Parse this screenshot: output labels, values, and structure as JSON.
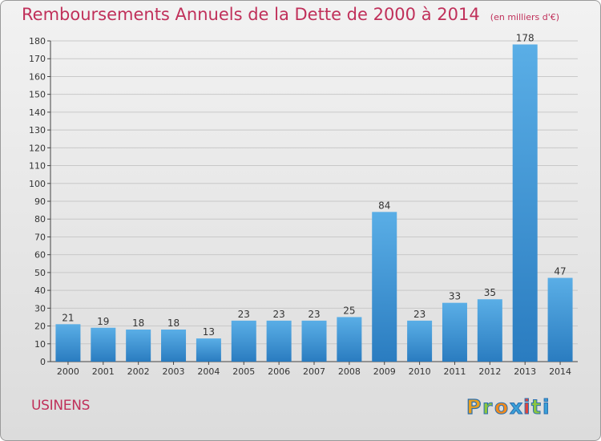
{
  "title": "Remboursements Annuels de la Dette de 2000 à 2014",
  "unit": "(en milliers d'€)",
  "commune": "USINENS",
  "logo_text": "Proxiti",
  "colors": {
    "title": "#c0305a",
    "bar_light": "#5aaee6",
    "bar_dark": "#2a7cc0",
    "grid": "#c8c8c8",
    "axis": "#444444"
  },
  "chart_data": {
    "type": "bar",
    "categories": [
      "2000",
      "2001",
      "2002",
      "2003",
      "2004",
      "2005",
      "2006",
      "2007",
      "2008",
      "2009",
      "2010",
      "2011",
      "2012",
      "2013",
      "2014"
    ],
    "values": [
      21,
      19,
      18,
      18,
      13,
      23,
      23,
      23,
      25,
      84,
      23,
      33,
      35,
      178,
      47
    ],
    "ylim": [
      0,
      180
    ],
    "ytick_step": 10,
    "grid": true,
    "data_labels": true
  }
}
